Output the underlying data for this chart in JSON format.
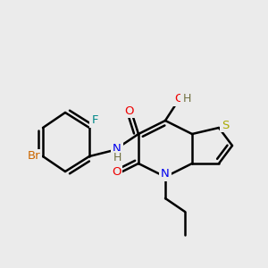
{
  "background_color": "#ebebeb",
  "bond_color": "#000000",
  "bond_width": 1.8,
  "atom_colors": {
    "Br": "#cc6600",
    "F": "#008888",
    "N": "#0000ee",
    "H": "#707040",
    "O": "#ee0000",
    "S": "#aaaa00",
    "C": "#000000"
  },
  "figsize": [
    3.0,
    3.0
  ],
  "dpi": 100
}
